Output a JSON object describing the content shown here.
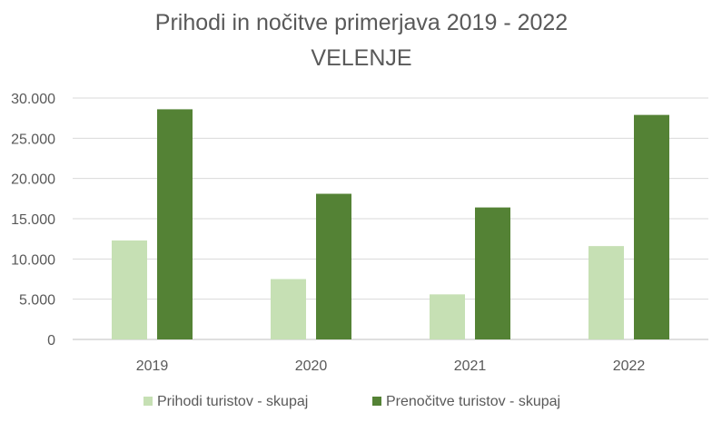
{
  "chart_data": {
    "type": "bar",
    "title": "Prihodi in nočitve primerjava 2019 - 2022",
    "subtitle": "VELENJE",
    "xlabel": "",
    "ylabel": "",
    "categories": [
      "2019",
      "2020",
      "2021",
      "2022"
    ],
    "ylim": [
      0,
      30000
    ],
    "yticks": [
      0,
      5000,
      10000,
      15000,
      20000,
      25000,
      30000
    ],
    "ytick_labels": [
      "0",
      "5.000",
      "10.000",
      "15.000",
      "20.000",
      "25.000",
      "30.000"
    ],
    "grid": true,
    "legend_position": "bottom",
    "series": [
      {
        "name": "Prihodi turistov - skupaj",
        "color": "#c6e0b4",
        "values": [
          12300,
          7500,
          5600,
          11600
        ]
      },
      {
        "name": "Prenočitve turistov - skupaj",
        "color": "#548235",
        "values": [
          28600,
          18100,
          16400,
          27900
        ]
      }
    ]
  }
}
